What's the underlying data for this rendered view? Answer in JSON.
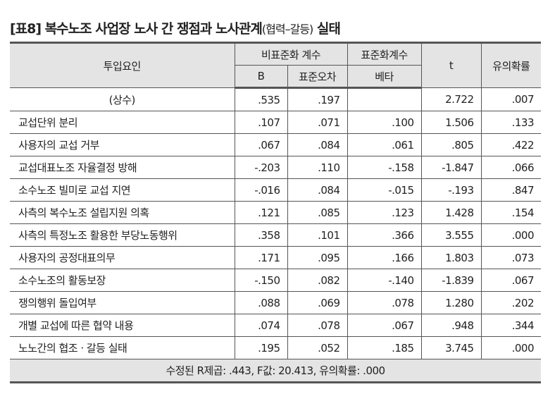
{
  "title": {
    "main": "[표8] 복수노조 사업장 노사 간 쟁점과 노사관계",
    "paren": "(협력–갈등)",
    "suffix": " 실태"
  },
  "headers": {
    "factor": "투입요인",
    "unstd": "비표준화 계수",
    "std": "표준화계수",
    "t": "t",
    "sig": "유의확률",
    "b": "B",
    "se": "표준오차",
    "beta": "베타"
  },
  "rows": [
    {
      "label": "(상수)",
      "b": ".535",
      "se": ".197",
      "beta": "",
      "t": "2.722",
      "sig": ".007"
    },
    {
      "label": "교섭단위 분리",
      "b": ".107",
      "se": ".071",
      "beta": ".100",
      "t": "1.506",
      "sig": ".133"
    },
    {
      "label": "사용자의 교섭 거부",
      "b": ".067",
      "se": ".084",
      "beta": ".061",
      "t": ".805",
      "sig": ".422"
    },
    {
      "label": "교섭대표노조 자율결정 방해",
      "b": "-.203",
      "se": ".110",
      "beta": "-.158",
      "t": "-1.847",
      "sig": ".066"
    },
    {
      "label": "소수노조 빌미로 교섭 지연",
      "b": "-.016",
      "se": ".084",
      "beta": "-.015",
      "t": "-.193",
      "sig": ".847"
    },
    {
      "label": "사측의 복수노조 설립지원 의혹",
      "b": ".121",
      "se": ".085",
      "beta": ".123",
      "t": "1.428",
      "sig": ".154"
    },
    {
      "label": "사측의 특정노조 활용한 부당노동행위",
      "b": ".358",
      "se": ".101",
      "beta": ".366",
      "t": "3.555",
      "sig": ".000"
    },
    {
      "label": "사용자의 공정대표의무",
      "b": ".171",
      "se": ".095",
      "beta": ".166",
      "t": "1.803",
      "sig": ".073"
    },
    {
      "label": "소수노조의 활동보장",
      "b": "-.150",
      "se": ".082",
      "beta": "-.140",
      "t": "-1.839",
      "sig": ".067"
    },
    {
      "label": "쟁의행위 돌입여부",
      "b": ".088",
      "se": ".069",
      "beta": ".078",
      "t": "1.280",
      "sig": ".202"
    },
    {
      "label": "개별 교섭에 따른 협약 내용",
      "b": ".074",
      "se": ".078",
      "beta": ".067",
      "t": ".948",
      "sig": ".344"
    },
    {
      "label": "노노간의 협조 · 갈등 실태",
      "b": ".195",
      "se": ".052",
      "beta": ".185",
      "t": "3.745",
      "sig": ".000"
    }
  ],
  "footer": "수정된 R제곱: .443, F값: 20.413, 유의확률: .000"
}
